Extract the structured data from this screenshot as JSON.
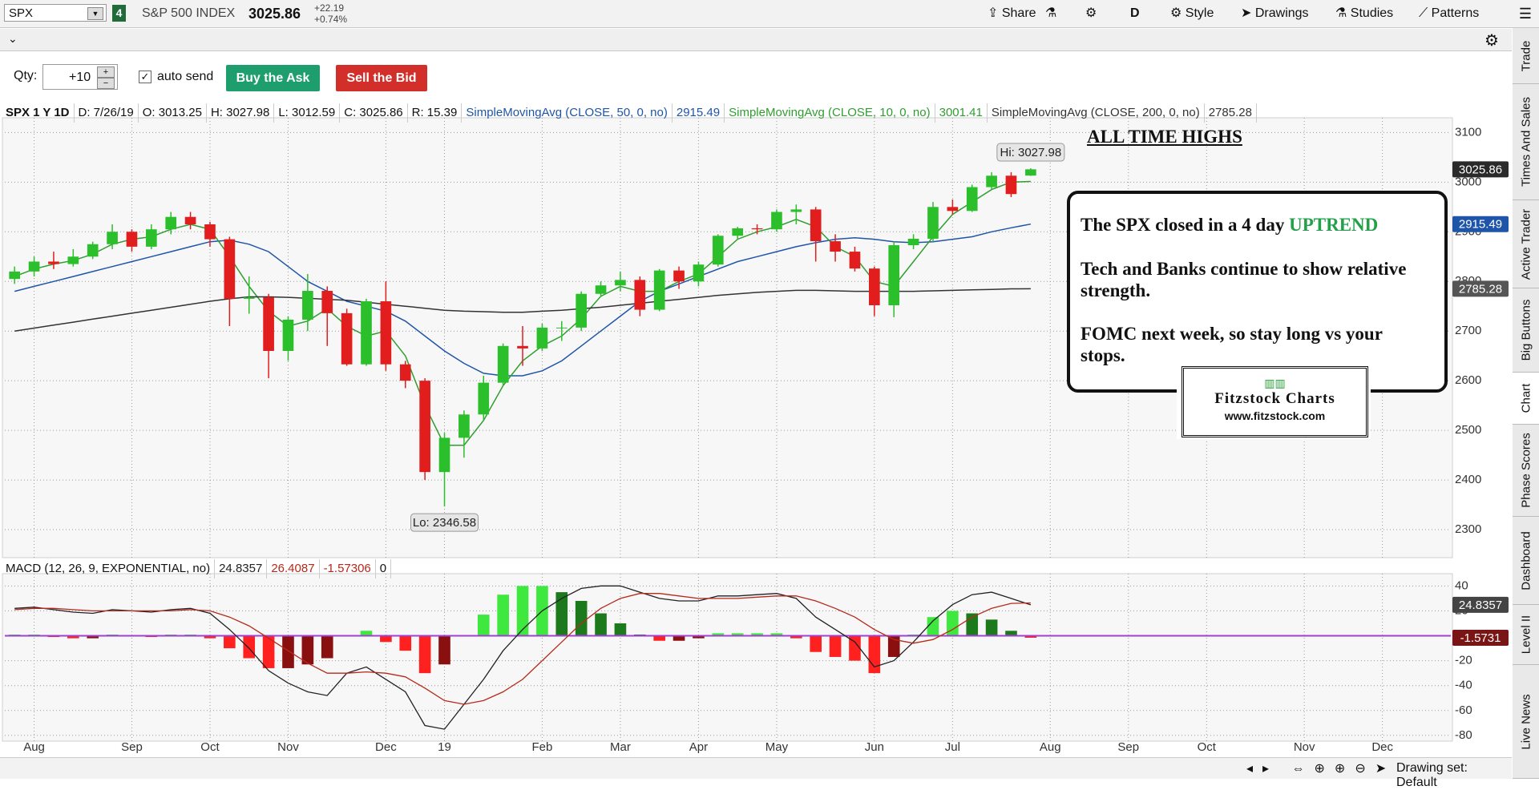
{
  "toolbar": {
    "symbol": "SPX",
    "badge": "4",
    "name": "S&P 500 INDEX",
    "last": "3025.86",
    "change": "+22.19",
    "change_pct": "+0.74%",
    "buttons": [
      "Share",
      "D",
      "Style",
      "Drawings",
      "Studies",
      "Patterns"
    ]
  },
  "order": {
    "qty_label": "Qty:",
    "qty": "+10",
    "auto_send": "auto send",
    "buy": "Buy the Ask",
    "sell": "Sell the Bid"
  },
  "annotation": {
    "title": "ALL TIME HIGHS",
    "line1": "The SPX closed in a 4 day",
    "uptrend": "UPTREND",
    "line2": "Tech and Banks continue to show relative strength.",
    "line3": "FOMC next week, so stay long vs your stops."
  },
  "logo": {
    "name": "Fitzstock Charts",
    "url": "www.fitzstock.com"
  },
  "status": {
    "drawing_set": "Drawing set: Default"
  },
  "side_tabs": [
    "Trade",
    "Times And Sales",
    "Active Trader",
    "Big Buttons",
    "Chart",
    "Phase Scores",
    "Dashboard",
    "Level II",
    "Live News"
  ],
  "chart_data": [
    {
      "type": "candlestick",
      "info": [
        "SPX 1 Y 1D",
        "D: 7/26/19",
        "O: 3013.25",
        "H: 3027.98",
        "L: 3012.59",
        "C: 3025.86",
        "R: 15.39"
      ],
      "hi_label": "Hi: 3027.98",
      "lo_label": "Lo: 2346.58",
      "categories": [
        null,
        "Aug",
        null,
        null,
        null,
        null,
        "Sep",
        null,
        null,
        null,
        "Oct",
        null,
        null,
        null,
        "Nov",
        null,
        null,
        null,
        null,
        "Dec",
        null,
        null,
        "19",
        null,
        null,
        null,
        null,
        "Feb",
        null,
        null,
        null,
        "Mar",
        null,
        null,
        null,
        "Apr",
        null,
        null,
        null,
        "May",
        null,
        null,
        null,
        null,
        "Jun",
        null,
        null,
        null,
        "Jul",
        null,
        null,
        null,
        null,
        "Aug",
        null,
        null,
        null,
        "Sep",
        null,
        null,
        null,
        "Oct",
        null,
        null,
        null,
        null,
        "Nov",
        null,
        null,
        null,
        "Dec",
        null,
        null,
        null
      ],
      "open": [
        2805,
        2820,
        2840,
        2835,
        2850,
        2875,
        2900,
        2870,
        2905,
        2930,
        2915,
        2885,
        2765,
        2768,
        2660,
        2723,
        2781,
        2736,
        2633,
        2760,
        2633,
        2600,
        2416,
        2485,
        2532,
        2596,
        2670,
        2665,
        2707,
        2707,
        2775,
        2792,
        2803,
        2743,
        2822,
        2800,
        2834,
        2892,
        2907,
        2905,
        2940,
        2945,
        2881,
        2860,
        2826,
        2752,
        2873,
        2886,
        2950,
        2942,
        2990,
        3013,
        3013.25,
        null,
        null,
        null,
        null,
        null,
        null,
        null,
        null,
        null,
        null,
        null,
        null,
        null,
        null,
        null,
        null,
        null,
        null,
        null,
        null,
        null
      ],
      "high": [
        2830,
        2850,
        2860,
        2865,
        2880,
        2915,
        2905,
        2915,
        2940,
        2940,
        2920,
        2890,
        2810,
        2775,
        2730,
        2815,
        2790,
        2745,
        2765,
        2800,
        2640,
        2605,
        2495,
        2540,
        2610,
        2675,
        2710,
        2715,
        2720,
        2780,
        2800,
        2820,
        2810,
        2825,
        2830,
        2840,
        2895,
        2910,
        2915,
        2945,
        2955,
        2950,
        2895,
        2870,
        2830,
        2880,
        2895,
        2960,
        2965,
        2995,
        3020,
        3020,
        3027.98,
        null,
        null,
        null,
        null,
        null,
        null,
        null,
        null,
        null,
        null,
        null,
        null,
        null,
        null,
        null,
        null,
        null,
        null,
        null,
        null,
        null
      ],
      "low": [
        2795,
        2810,
        2825,
        2830,
        2845,
        2865,
        2860,
        2865,
        2895,
        2905,
        2870,
        2710,
        2735,
        2605,
        2640,
        2700,
        2670,
        2630,
        2630,
        2620,
        2585,
        2400,
        2346.58,
        2445,
        2520,
        2590,
        2630,
        2660,
        2680,
        2700,
        2770,
        2780,
        2730,
        2740,
        2785,
        2790,
        2830,
        2885,
        2895,
        2900,
        2915,
        2840,
        2840,
        2820,
        2730,
        2728,
        2865,
        2880,
        2935,
        2940,
        2985,
        2970,
        3012.59,
        null,
        null,
        null,
        null,
        null,
        null,
        null,
        null,
        null,
        null,
        null,
        null,
        null,
        null,
        null,
        null,
        null,
        null,
        null,
        null,
        null
      ],
      "close": [
        2820,
        2840,
        2835,
        2850,
        2875,
        2900,
        2870,
        2905,
        2930,
        2915,
        2885,
        2765,
        2768,
        2660,
        2723,
        2781,
        2736,
        2633,
        2760,
        2633,
        2600,
        2416,
        2485,
        2532,
        2596,
        2670,
        2665,
        2707,
        2707,
        2775,
        2792,
        2803,
        2743,
        2822,
        2800,
        2834,
        2892,
        2907,
        2905,
        2940,
        2945,
        2881,
        2860,
        2826,
        2752,
        2873,
        2886,
        2950,
        2942,
        2990,
        3013,
        2976,
        3025.86,
        null,
        null,
        null,
        null,
        null,
        null,
        null,
        null,
        null,
        null,
        null,
        null,
        null,
        null,
        null,
        null,
        null,
        null,
        null,
        null,
        null
      ],
      "up_color": "#2cbf2c",
      "down_color": "#e21d1d",
      "series": [
        {
          "name": "SimpleMovingAvg (CLOSE, 50, 0, no)",
          "color": "#1f55a8",
          "values": [
            2780,
            2790,
            2800,
            2810,
            2820,
            2830,
            2840,
            2850,
            2860,
            2870,
            2880,
            2883,
            2875,
            2860,
            2830,
            2800,
            2780,
            2760,
            2750,
            2740,
            2720,
            2690,
            2660,
            2635,
            2615,
            2610,
            2610,
            2620,
            2640,
            2670,
            2700,
            2730,
            2760,
            2780,
            2795,
            2810,
            2825,
            2840,
            2850,
            2860,
            2870,
            2878,
            2885,
            2888,
            2885,
            2880,
            2878,
            2880,
            2885,
            2890,
            2900,
            2908,
            2915.49,
            null,
            null,
            null,
            null,
            null,
            null,
            null,
            null,
            null,
            null,
            null,
            null,
            null,
            null,
            null,
            null,
            null,
            null,
            null,
            null,
            null
          ]
        },
        {
          "name": "SimpleMovingAvg (CLOSE, 10, 0, no)",
          "color": "#2f9e2f",
          "values": [
            2810,
            2825,
            2835,
            2842,
            2855,
            2875,
            2885,
            2890,
            2905,
            2915,
            2905,
            2850,
            2790,
            2740,
            2710,
            2720,
            2745,
            2710,
            2690,
            2700,
            2650,
            2550,
            2470,
            2470,
            2520,
            2590,
            2640,
            2670,
            2690,
            2725,
            2770,
            2790,
            2780,
            2780,
            2800,
            2815,
            2850,
            2885,
            2900,
            2910,
            2925,
            2910,
            2870,
            2850,
            2800,
            2790,
            2840,
            2890,
            2935,
            2960,
            2985,
            3000,
            3001.41,
            null,
            null,
            null,
            null,
            null,
            null,
            null,
            null,
            null,
            null,
            null,
            null,
            null,
            null,
            null,
            null,
            null,
            null,
            null,
            null,
            null
          ]
        },
        {
          "name": "SimpleMovingAvg (CLOSE, 200, 0, no)",
          "color": "#333333",
          "values": [
            2700,
            2706,
            2712,
            2718,
            2724,
            2730,
            2736,
            2742,
            2748,
            2754,
            2760,
            2765,
            2769,
            2769,
            2768,
            2766,
            2764,
            2762,
            2758,
            2754,
            2750,
            2746,
            2742,
            2740,
            2739,
            2738,
            2738,
            2740,
            2742,
            2745,
            2748,
            2752,
            2756,
            2760,
            2764,
            2768,
            2772,
            2775,
            2778,
            2780,
            2782,
            2782,
            2781,
            2780,
            2780,
            2780,
            2780,
            2781,
            2782,
            2783,
            2784,
            2785,
            2785.28,
            null,
            null,
            null,
            null,
            null,
            null,
            null,
            null,
            null,
            null,
            null,
            null,
            null,
            null,
            null,
            null,
            null,
            null,
            null,
            null,
            null
          ]
        }
      ],
      "ylim": [
        2250,
        3120
      ],
      "yticks": [
        2300,
        2400,
        2500,
        2600,
        2700,
        2800,
        2900,
        3000,
        3100
      ],
      "grid": true
    },
    {
      "type": "macd",
      "title": "MACD (12, 26, 9, EXPONENTIAL, no)",
      "hist_bubble": "-1.5731",
      "categories": [
        null,
        "Aug",
        null,
        null,
        null,
        null,
        "Sep",
        null,
        null,
        null,
        "Oct",
        null,
        null,
        null,
        "Nov",
        null,
        null,
        null,
        null,
        "Dec",
        null,
        null,
        "19",
        null,
        null,
        null,
        null,
        "Feb",
        null,
        null,
        null,
        "Mar",
        null,
        null,
        null,
        "Apr",
        null,
        null,
        null,
        "May",
        null,
        null,
        null,
        null,
        "Jun",
        null,
        null,
        null,
        "Jul",
        null,
        null,
        null,
        null,
        "Aug",
        null,
        null,
        null,
        "Sep",
        null,
        null,
        null,
        "Oct",
        null,
        null,
        null,
        null,
        "Nov",
        null,
        null,
        null,
        "Dec",
        null,
        null,
        null
      ],
      "series": [
        {
          "color": "#222222",
          "style": "line",
          "values": [
            22,
            23,
            21,
            19,
            18,
            21,
            20,
            19,
            21,
            22,
            18,
            5,
            -10,
            -28,
            -38,
            -45,
            -48,
            -30,
            -25,
            -35,
            -45,
            -72,
            -75,
            -55,
            -35,
            -12,
            5,
            20,
            30,
            38,
            40,
            40,
            35,
            30,
            28,
            28,
            32,
            32,
            33,
            34,
            30,
            15,
            5,
            -5,
            -25,
            -20,
            -5,
            12,
            25,
            33,
            35,
            30,
            24.8357,
            null,
            null,
            null,
            null,
            null,
            null,
            null,
            null,
            null,
            null,
            null,
            null,
            null,
            null,
            null,
            null,
            null,
            null,
            null,
            null,
            null
          ]
        },
        {
          "color": "#b52a1c",
          "style": "line",
          "values": [
            21,
            22,
            22,
            21,
            20,
            20,
            20,
            20,
            20,
            21,
            20,
            15,
            8,
            -2,
            -12,
            -22,
            -30,
            -30,
            -29,
            -30,
            -33,
            -42,
            -52,
            -55,
            -52,
            -45,
            -35,
            -20,
            -5,
            10,
            22,
            30,
            34,
            34,
            32,
            30,
            30,
            30,
            31,
            32,
            32,
            28,
            22,
            15,
            5,
            -3,
            -6,
            -3,
            5,
            15,
            22,
            26,
            26.4087,
            null,
            null,
            null,
            null,
            null,
            null,
            null,
            null,
            null,
            null,
            null,
            null,
            null,
            null,
            null,
            null,
            null,
            null,
            null,
            null,
            null
          ]
        },
        {
          "color": "#b52a1c",
          "style": "histogram",
          "values": [
            1,
            1,
            -1,
            -2,
            -2,
            1,
            0,
            -1,
            1,
            1,
            -2,
            -10,
            -18,
            -26,
            -26,
            -23,
            -18,
            0,
            4,
            -5,
            -12,
            -30,
            -23,
            0,
            17,
            33,
            40,
            40,
            35,
            28,
            18,
            10,
            1,
            -4,
            -4,
            -2,
            2,
            2,
            2,
            2,
            -2,
            -13,
            -17,
            -20,
            -30,
            -17,
            1,
            15,
            20,
            18,
            13,
            4,
            -1.57306,
            null,
            null,
            null,
            null,
            null,
            null,
            null,
            null,
            null,
            null,
            null,
            null,
            null,
            null,
            null,
            null,
            null,
            null,
            null,
            null,
            null
          ]
        }
      ],
      "zero_line": {
        "value": 0,
        "color": "#a040d0"
      },
      "ylim": [
        -82,
        46
      ],
      "yticks": [
        40,
        20,
        -20,
        -40,
        -60,
        -80
      ],
      "grid": true
    }
  ]
}
